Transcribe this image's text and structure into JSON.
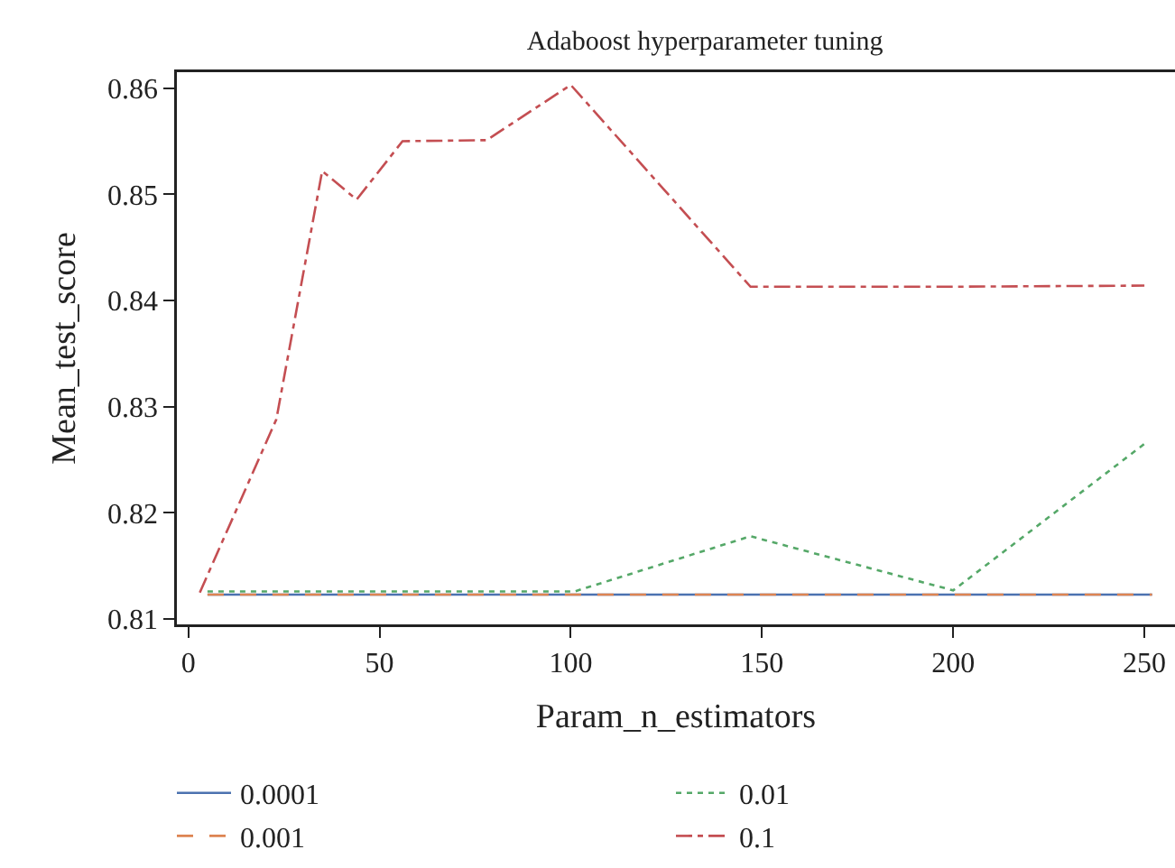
{
  "chart_data": {
    "type": "line",
    "title": "Adaboost hyperparameter tuning",
    "xlabel": "Param_n_estimators",
    "ylabel": "Mean_test_score",
    "xlim": [
      -3,
      258
    ],
    "xticks": [
      0,
      50,
      100,
      150,
      200,
      250
    ],
    "ylim": [
      0.8095,
      0.8615
    ],
    "yticks": [
      0.81,
      0.82,
      0.83,
      0.84,
      0.85,
      0.86
    ],
    "grid": false,
    "legend": "bottom",
    "marker": "none",
    "series": [
      {
        "name": "0.0001",
        "color": "#4c72b0",
        "line_style": "solid",
        "x": [
          5,
          252
        ],
        "values": [
          0.8123,
          0.8123
        ]
      },
      {
        "name": "0.001",
        "color": "#dd8452",
        "line_style": "dashed",
        "x": [
          5,
          252
        ],
        "values": [
          0.8123,
          0.8123
        ]
      },
      {
        "name": "0.01",
        "color": "#55a868",
        "line_style": "dotted",
        "x": [
          5,
          101,
          147,
          200,
          250
        ],
        "values": [
          0.8126,
          0.8126,
          0.8178,
          0.8127,
          0.8265
        ]
      },
      {
        "name": "0.1",
        "color": "#c44e52",
        "line_style": "dashdot",
        "x": [
          3,
          23,
          35,
          44,
          56,
          78,
          100,
          147,
          200,
          250
        ],
        "values": [
          0.8125,
          0.8288,
          0.8522,
          0.8495,
          0.855,
          0.8551,
          0.8603,
          0.8413,
          0.8413,
          0.8414
        ]
      }
    ]
  }
}
